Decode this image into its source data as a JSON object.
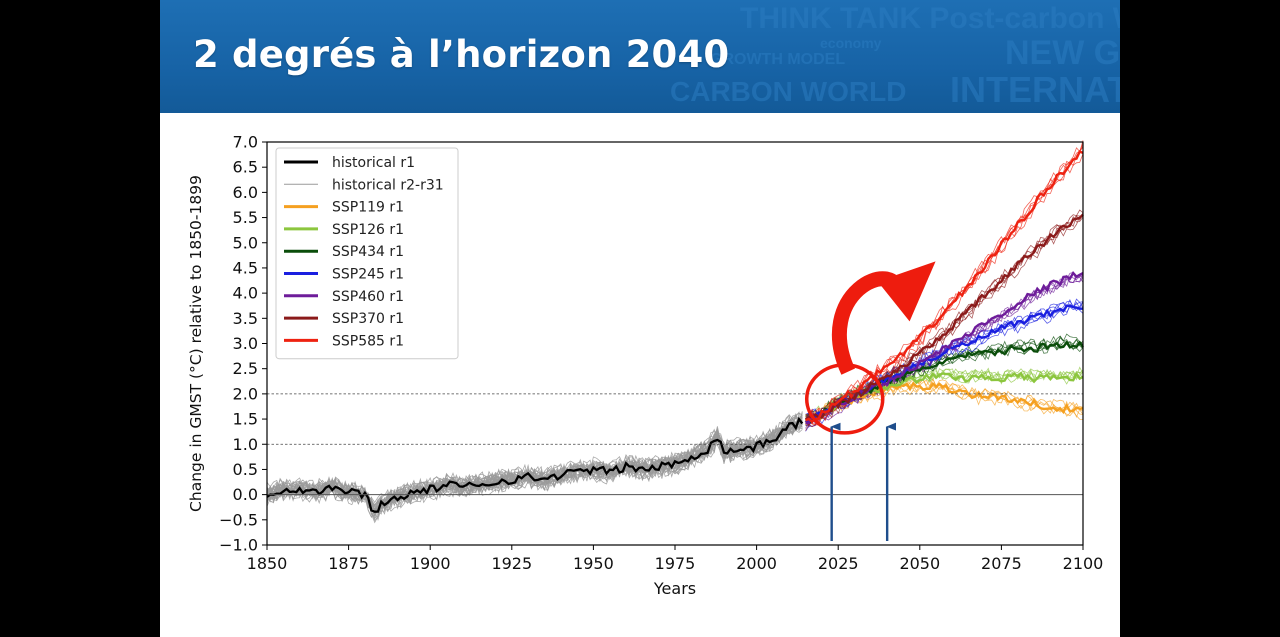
{
  "slide": {
    "title": "2 degrés à l’horizon 2040",
    "banner_watermark": [
      "THINK TANK Post-carbon W",
      "economy",
      "GROWTH MODEL",
      "NEW GROWT",
      "CARBON WORLD",
      "INTERNATION"
    ]
  },
  "colors": {
    "banner": "#1767aa",
    "title": "#ffffff",
    "historical": "#000000",
    "historical_members": "#9a9a9a",
    "SSP119": "#f5a020",
    "SSP126": "#8cc63e",
    "SSP434": "#0a4d0a",
    "SSP245": "#1a1fe0",
    "SSP460": "#6e1c9a",
    "SSP370": "#8b1a1a",
    "SSP585": "#ee2211",
    "annotation_arrow": "#ee1c0e",
    "marker_arrows": "#1f4e8c"
  },
  "chart_data": {
    "type": "line",
    "xlabel": "Years",
    "ylabel": "Change in GMST (°C) relative to 1850-1899",
    "xlim": [
      1850,
      2100
    ],
    "ylim": [
      -1.0,
      7.0
    ],
    "x_ticks": [
      "1850",
      "1875",
      "1900",
      "1925",
      "1950",
      "1975",
      "2000",
      "2025",
      "2050",
      "2075",
      "2100"
    ],
    "y_ticks": [
      "−1.0",
      "−0.5",
      "0.0",
      "0.5",
      "1.0",
      "1.5",
      "2.0",
      "2.5",
      "3.0",
      "3.5",
      "4.0",
      "4.5",
      "5.0",
      "5.5",
      "6.0",
      "6.5",
      "7.0"
    ],
    "reference_lines": [
      {
        "y": 0.0,
        "style": "solid"
      },
      {
        "y": 1.0,
        "style": "dashed"
      },
      {
        "y": 2.0,
        "style": "dashed"
      }
    ],
    "legend_position": "top-left",
    "legend": [
      "historical r1",
      "historical r2-r31",
      "SSP119 r1",
      "SSP126 r1",
      "SSP434 r1",
      "SSP245 r1",
      "SSP460 r1",
      "SSP370 r1",
      "SSP585 r1"
    ],
    "series": [
      {
        "name": "historical r1",
        "color_key": "historical",
        "x": [
          1850,
          1855,
          1860,
          1865,
          1870,
          1875,
          1880,
          1883,
          1885,
          1890,
          1895,
          1900,
          1905,
          1910,
          1915,
          1920,
          1925,
          1930,
          1935,
          1940,
          1945,
          1950,
          1955,
          1960,
          1965,
          1970,
          1975,
          1980,
          1985,
          1988,
          1990,
          1995,
          2000,
          2005,
          2010,
          2014
        ],
        "y": [
          0.0,
          0.1,
          0.1,
          0.05,
          0.15,
          0.05,
          0.0,
          -0.35,
          -0.2,
          -0.05,
          0.05,
          0.1,
          0.2,
          0.15,
          0.2,
          0.25,
          0.3,
          0.35,
          0.3,
          0.4,
          0.45,
          0.5,
          0.45,
          0.55,
          0.5,
          0.55,
          0.6,
          0.75,
          0.9,
          1.15,
          0.85,
          0.9,
          0.95,
          1.1,
          1.35,
          1.45
        ]
      },
      {
        "name": "SSP119 r1",
        "color_key": "SSP119",
        "x": [
          2015,
          2020,
          2025,
          2030,
          2035,
          2040,
          2045,
          2050,
          2055,
          2060,
          2065,
          2070,
          2075,
          2080,
          2085,
          2090,
          2095,
          2100
        ],
        "y": [
          1.45,
          1.6,
          1.8,
          1.9,
          2.0,
          2.1,
          2.15,
          2.15,
          2.15,
          2.1,
          2.0,
          1.95,
          1.95,
          1.85,
          1.8,
          1.75,
          1.7,
          1.65
        ]
      },
      {
        "name": "SSP126 r1",
        "color_key": "SSP126",
        "x": [
          2015,
          2020,
          2025,
          2030,
          2035,
          2040,
          2045,
          2050,
          2055,
          2060,
          2065,
          2070,
          2075,
          2080,
          2085,
          2090,
          2095,
          2100
        ],
        "y": [
          1.45,
          1.6,
          1.8,
          1.95,
          2.05,
          2.15,
          2.25,
          2.3,
          2.35,
          2.35,
          2.3,
          2.35,
          2.3,
          2.35,
          2.3,
          2.35,
          2.3,
          2.35
        ]
      },
      {
        "name": "SSP434 r1",
        "color_key": "SSP434",
        "x": [
          2015,
          2020,
          2025,
          2030,
          2035,
          2040,
          2045,
          2050,
          2055,
          2060,
          2065,
          2070,
          2075,
          2080,
          2085,
          2090,
          2095,
          2100
        ],
        "y": [
          1.45,
          1.6,
          1.8,
          1.95,
          2.1,
          2.25,
          2.35,
          2.45,
          2.6,
          2.7,
          2.75,
          2.8,
          2.85,
          2.9,
          2.9,
          2.95,
          3.0,
          2.95
        ]
      },
      {
        "name": "SSP245 r1",
        "color_key": "SSP245",
        "x": [
          2015,
          2020,
          2025,
          2030,
          2035,
          2040,
          2045,
          2050,
          2055,
          2060,
          2065,
          2070,
          2075,
          2080,
          2085,
          2090,
          2095,
          2100
        ],
        "y": [
          1.45,
          1.6,
          1.8,
          1.95,
          2.15,
          2.3,
          2.45,
          2.6,
          2.75,
          2.9,
          3.0,
          3.15,
          3.3,
          3.4,
          3.5,
          3.6,
          3.7,
          3.75
        ]
      },
      {
        "name": "SSP460 r1",
        "color_key": "SSP460",
        "x": [
          2015,
          2020,
          2025,
          2030,
          2035,
          2040,
          2045,
          2050,
          2055,
          2060,
          2065,
          2070,
          2075,
          2080,
          2085,
          2090,
          2095,
          2100
        ],
        "y": [
          1.45,
          1.6,
          1.8,
          1.95,
          2.1,
          2.25,
          2.45,
          2.6,
          2.8,
          3.0,
          3.2,
          3.4,
          3.6,
          3.8,
          4.0,
          4.15,
          4.3,
          4.4
        ]
      },
      {
        "name": "SSP370 r1",
        "color_key": "SSP370",
        "x": [
          2015,
          2020,
          2025,
          2030,
          2035,
          2040,
          2045,
          2050,
          2055,
          2060,
          2065,
          2070,
          2075,
          2080,
          2085,
          2090,
          2095,
          2100
        ],
        "y": [
          1.45,
          1.6,
          1.8,
          1.95,
          2.15,
          2.35,
          2.55,
          2.8,
          3.05,
          3.35,
          3.65,
          3.95,
          4.25,
          4.55,
          4.85,
          5.1,
          5.35,
          5.55
        ]
      },
      {
        "name": "SSP585 r1",
        "color_key": "SSP585",
        "x": [
          2015,
          2020,
          2025,
          2030,
          2035,
          2040,
          2045,
          2050,
          2055,
          2060,
          2065,
          2070,
          2075,
          2080,
          2085,
          2090,
          2095,
          2100
        ],
        "y": [
          1.45,
          1.6,
          1.85,
          2.05,
          2.3,
          2.55,
          2.8,
          3.1,
          3.45,
          3.8,
          4.15,
          4.55,
          4.95,
          5.35,
          5.75,
          6.15,
          6.5,
          6.85
        ]
      }
    ],
    "annotations": [
      {
        "type": "circle",
        "center_x": 2027,
        "center_y": 1.9
      },
      {
        "type": "curved-arrow",
        "from_x": 2025,
        "to_x": 2053
      },
      {
        "type": "vertical-arrow",
        "x": 2023
      },
      {
        "type": "vertical-arrow",
        "x": 2040
      }
    ]
  }
}
